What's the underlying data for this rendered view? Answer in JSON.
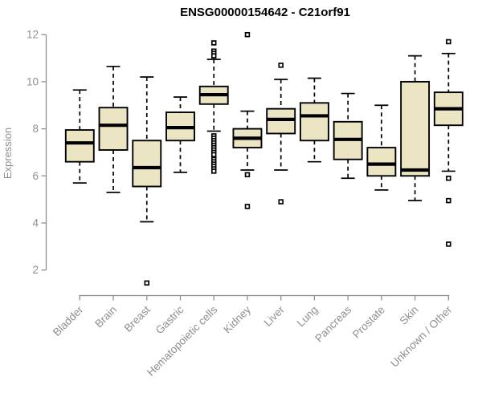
{
  "colors": {
    "background": "#ffffff",
    "box_fill": "#ece5c3",
    "box_stroke": "#000000",
    "median": "#000000",
    "whisker": "#000000",
    "outlier_fill": "#ffffff",
    "axis": "#8f8f8f",
    "tick_label": "#8f8f8f",
    "category_label": "#8f8f8f",
    "title": "#000000",
    "ylabel": "#8f8f8f"
  },
  "chart_data": {
    "type": "boxplot",
    "title": "ENSG00000154642 - C21orf91",
    "ylabel": "Expression",
    "xlabel": "",
    "ylim": [
      1.3,
      12.2
    ],
    "yticks": [
      2,
      4,
      6,
      8,
      10,
      12
    ],
    "grid": false,
    "legend_position": "none",
    "categories": [
      "Bladder",
      "Brain",
      "Breast",
      "Gastric",
      "Hematopoietic cells",
      "Kidney",
      "Liver",
      "Lung",
      "Pancreas",
      "Prostate",
      "Skin",
      "Unknown / Other"
    ],
    "series": [
      {
        "name": "Bladder",
        "whisker_low": 5.7,
        "q1": 6.6,
        "median": 7.4,
        "q3": 7.95,
        "whisker_high": 9.65,
        "outliers": []
      },
      {
        "name": "Brain",
        "whisker_low": 5.3,
        "q1": 7.1,
        "median": 8.15,
        "q3": 8.9,
        "whisker_high": 10.65,
        "outliers": []
      },
      {
        "name": "Breast",
        "whisker_low": 4.05,
        "q1": 5.55,
        "median": 6.35,
        "q3": 7.5,
        "whisker_high": 10.2,
        "outliers": [
          1.45
        ]
      },
      {
        "name": "Gastric",
        "whisker_low": 6.15,
        "q1": 7.5,
        "median": 8.05,
        "q3": 8.7,
        "whisker_high": 9.35,
        "outliers": []
      },
      {
        "name": "Hematopoietic cells",
        "whisker_low": 7.9,
        "q1": 9.05,
        "median": 9.45,
        "q3": 9.8,
        "whisker_high": 10.95,
        "outliers": [
          11.65,
          11.3,
          11.2,
          11.1,
          7.7,
          7.6,
          7.5,
          7.4,
          7.3,
          7.2,
          7.1,
          7.0,
          6.9,
          6.7,
          6.6,
          6.5,
          6.4,
          6.3,
          6.2
        ]
      },
      {
        "name": "Kidney",
        "whisker_low": 6.25,
        "q1": 7.2,
        "median": 7.6,
        "q3": 8.0,
        "whisker_high": 8.75,
        "outliers": [
          12.0,
          6.05,
          4.7
        ]
      },
      {
        "name": "Liver",
        "whisker_low": 6.25,
        "q1": 7.8,
        "median": 8.4,
        "q3": 8.85,
        "whisker_high": 10.1,
        "outliers": [
          10.7,
          4.9
        ]
      },
      {
        "name": "Lung",
        "whisker_low": 6.6,
        "q1": 7.5,
        "median": 8.55,
        "q3": 9.1,
        "whisker_high": 10.15,
        "outliers": []
      },
      {
        "name": "Pancreas",
        "whisker_low": 5.9,
        "q1": 6.7,
        "median": 7.55,
        "q3": 8.3,
        "whisker_high": 9.5,
        "outliers": []
      },
      {
        "name": "Prostate",
        "whisker_low": 5.4,
        "q1": 6.0,
        "median": 6.5,
        "q3": 7.2,
        "whisker_high": 9.0,
        "outliers": []
      },
      {
        "name": "Skin",
        "whisker_low": 4.95,
        "q1": 6.0,
        "median": 6.25,
        "q3": 10.0,
        "whisker_high": 11.1,
        "outliers": []
      },
      {
        "name": "Unknown / Other",
        "whisker_low": 6.2,
        "q1": 8.15,
        "median": 8.85,
        "q3": 9.55,
        "whisker_high": 11.2,
        "outliers": [
          11.7,
          5.9,
          4.95,
          3.1
        ]
      }
    ]
  }
}
